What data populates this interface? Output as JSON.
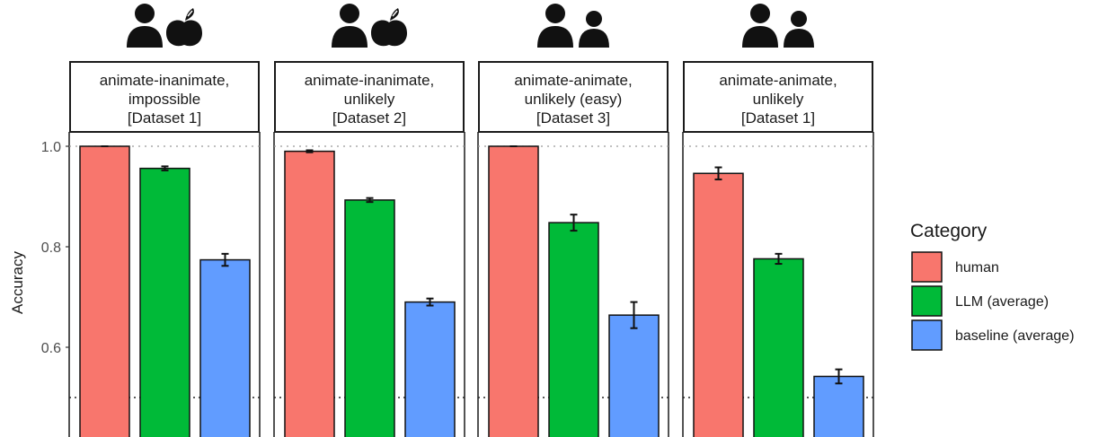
{
  "chart_data": {
    "type": "bar",
    "ylabel": "Accuracy",
    "ylim": [
      0.5,
      1.0
    ],
    "yticks": [
      "1.0",
      "0.8",
      "0.6"
    ],
    "ytick_values": [
      1.0,
      0.8,
      0.6
    ],
    "reference_lines": [
      1.0,
      0.5
    ],
    "grid": false,
    "legend": {
      "title": "Category",
      "placement": "right",
      "entries": [
        "human",
        "LLM (average)",
        "baseline (average)"
      ]
    },
    "colors": {
      "human": "#F8766D",
      "LLM (average)": "#00BA38",
      "baseline (average)": "#619CFF"
    },
    "panels": [
      {
        "label": [
          "animate-inanimate,",
          "impossible",
          "[Dataset 1]"
        ],
        "icon": "person-apple-icon",
        "values": [
          1.0,
          0.956,
          0.774
        ],
        "errors": [
          0.0,
          0.004,
          0.012
        ]
      },
      {
        "label": [
          "animate-inanimate,",
          "unlikely",
          "[Dataset 2]"
        ],
        "icon": "person-apple-icon",
        "values": [
          0.99,
          0.893,
          0.69
        ],
        "errors": [
          0.002,
          0.004,
          0.007
        ]
      },
      {
        "label": [
          "animate-animate,",
          "unlikely (easy)",
          "[Dataset 3]"
        ],
        "icon": "two-persons-icon",
        "values": [
          1.0,
          0.848,
          0.664
        ],
        "errors": [
          0.0,
          0.016,
          0.026
        ]
      },
      {
        "label": [
          "animate-animate,",
          "unlikely",
          "[Dataset 1]"
        ],
        "icon": "two-persons-icon",
        "values": [
          0.946,
          0.776,
          0.542
        ],
        "errors": [
          0.012,
          0.01,
          0.014
        ]
      }
    ]
  }
}
